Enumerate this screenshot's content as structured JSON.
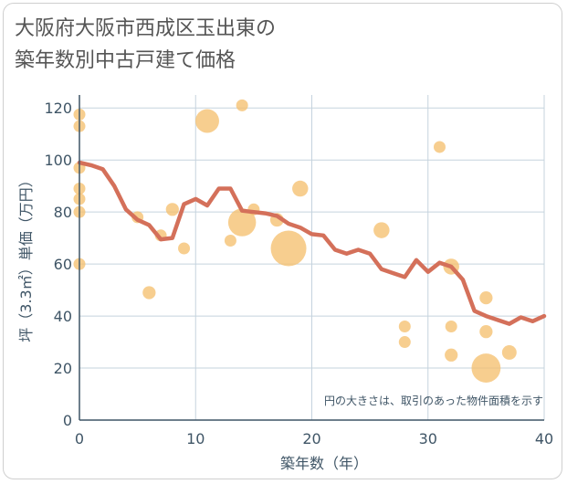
{
  "title": "大阪府大阪市西成区玉出東の\n築年数別中古戸建て価格",
  "colors": {
    "line": "#d4705a",
    "bubble": "#f5c070",
    "grid": "#c5d3de",
    "axis": "#3f5566"
  },
  "chart_data": {
    "type": "scatter",
    "title": "大阪府大阪市西成区玉出東の 築年数別中古戸建て価格",
    "xlabel": "築年数（年）",
    "ylabel": "坪（3.3㎡）単価（万円）",
    "xlim": [
      0,
      40
    ],
    "ylim": [
      0,
      125
    ],
    "x_ticks": [
      0,
      10,
      20,
      30,
      40
    ],
    "y_ticks": [
      0,
      20,
      40,
      60,
      80,
      100,
      120
    ],
    "grid": true,
    "note": "円の大きさは、取引のあった物件面積を示す",
    "series": [
      {
        "type": "line",
        "x": [
          0,
          1,
          2,
          3,
          4,
          5,
          6,
          7,
          8,
          9,
          10,
          11,
          12,
          13,
          14,
          15,
          16,
          17,
          18,
          19,
          20,
          21,
          22,
          23,
          24,
          25,
          26,
          27,
          28,
          29,
          30,
          31,
          32,
          33,
          34,
          35,
          36,
          37,
          38,
          39,
          40
        ],
        "y": [
          99,
          98,
          96.5,
          90,
          81,
          77,
          75,
          69.5,
          70,
          83,
          85,
          82.5,
          89,
          89,
          80.5,
          80,
          79.5,
          78.5,
          75.5,
          74,
          71.5,
          71,
          65.5,
          64,
          65.5,
          64,
          58,
          56.5,
          55,
          61.5,
          57,
          60.5,
          59,
          54,
          42,
          40,
          38.5,
          37,
          39.5,
          38,
          40
        ]
      },
      {
        "type": "bubble",
        "points": [
          {
            "x": 0,
            "y": 117.5,
            "s": 1
          },
          {
            "x": 0,
            "y": 113,
            "s": 1
          },
          {
            "x": 0,
            "y": 97,
            "s": 1
          },
          {
            "x": 0,
            "y": 89,
            "s": 1
          },
          {
            "x": 0,
            "y": 85,
            "s": 1
          },
          {
            "x": 0,
            "y": 80,
            "s": 1
          },
          {
            "x": 0,
            "y": 60,
            "s": 1
          },
          {
            "x": 5,
            "y": 78,
            "s": 1
          },
          {
            "x": 6,
            "y": 49,
            "s": 1.2
          },
          {
            "x": 7,
            "y": 71,
            "s": 1
          },
          {
            "x": 8,
            "y": 81,
            "s": 1.2
          },
          {
            "x": 9,
            "y": 66,
            "s": 1
          },
          {
            "x": 11,
            "y": 115,
            "s": 4
          },
          {
            "x": 13,
            "y": 69,
            "s": 1
          },
          {
            "x": 14,
            "y": 121,
            "s": 1
          },
          {
            "x": 14,
            "y": 76,
            "s": 5.5
          },
          {
            "x": 15,
            "y": 81,
            "s": 1
          },
          {
            "x": 17,
            "y": 77,
            "s": 1.3
          },
          {
            "x": 18,
            "y": 66,
            "s": 9
          },
          {
            "x": 19,
            "y": 89,
            "s": 1.8
          },
          {
            "x": 26,
            "y": 73,
            "s": 1.8
          },
          {
            "x": 28,
            "y": 36,
            "s": 1
          },
          {
            "x": 28,
            "y": 30,
            "s": 1
          },
          {
            "x": 31,
            "y": 105,
            "s": 1
          },
          {
            "x": 32,
            "y": 59,
            "s": 1.8
          },
          {
            "x": 32,
            "y": 36,
            "s": 1
          },
          {
            "x": 32,
            "y": 25,
            "s": 1.2
          },
          {
            "x": 35,
            "y": 47,
            "s": 1.2
          },
          {
            "x": 35,
            "y": 34,
            "s": 1.2
          },
          {
            "x": 35,
            "y": 20,
            "s": 6
          },
          {
            "x": 37,
            "y": 26,
            "s": 1.5
          }
        ]
      }
    ]
  }
}
